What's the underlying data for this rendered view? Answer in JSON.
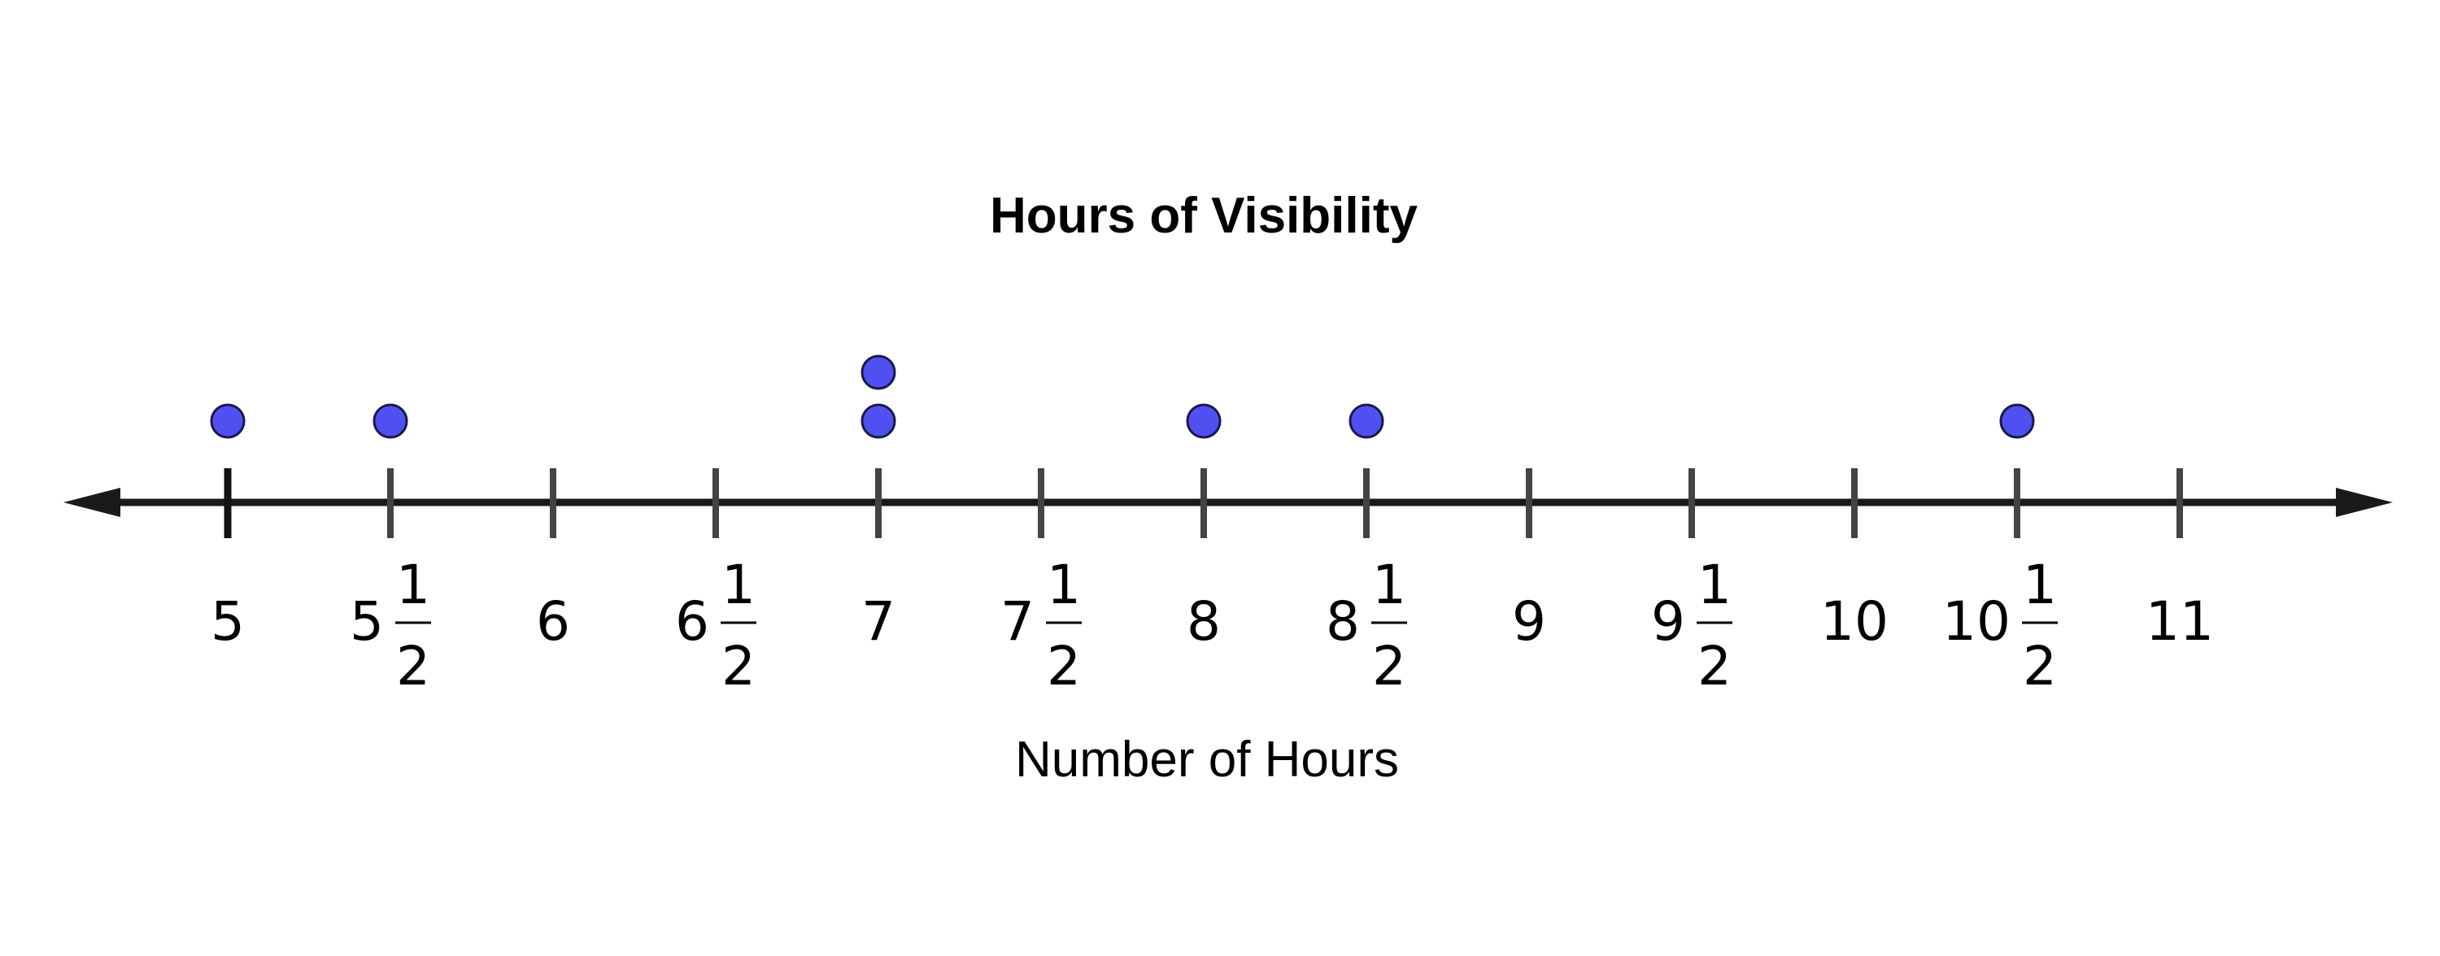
{
  "chart_data": {
    "type": "dot_plot",
    "title": "Hours of Visibility",
    "xlabel": "Number of Hours",
    "xlim": [
      5,
      11
    ],
    "tick_step": 0.5,
    "ticks": [
      {
        "value": 5,
        "whole": "5",
        "num": "",
        "den": ""
      },
      {
        "value": 5.5,
        "whole": "5",
        "num": "1",
        "den": "2"
      },
      {
        "value": 6,
        "whole": "6",
        "num": "",
        "den": ""
      },
      {
        "value": 6.5,
        "whole": "6",
        "num": "1",
        "den": "2"
      },
      {
        "value": 7,
        "whole": "7",
        "num": "",
        "den": ""
      },
      {
        "value": 7.5,
        "whole": "7",
        "num": "1",
        "den": "2"
      },
      {
        "value": 8,
        "whole": "8",
        "num": "",
        "den": ""
      },
      {
        "value": 8.5,
        "whole": "8",
        "num": "1",
        "den": "2"
      },
      {
        "value": 9,
        "whole": "9",
        "num": "",
        "den": ""
      },
      {
        "value": 9.5,
        "whole": "9",
        "num": "1",
        "den": "2"
      },
      {
        "value": 10,
        "whole": "10",
        "num": "",
        "den": ""
      },
      {
        "value": 10.5,
        "whole": "10",
        "num": "1",
        "den": "2"
      },
      {
        "value": 11,
        "whole": "11",
        "num": "",
        "den": ""
      }
    ],
    "points": [
      5,
      5.5,
      7,
      7,
      8,
      8.5,
      10.5
    ],
    "colors": {
      "dot_fill": "#5050f0",
      "dot_stroke": "#1a1a4a",
      "axis": "#1a1a1a",
      "tick": "#444444"
    }
  }
}
